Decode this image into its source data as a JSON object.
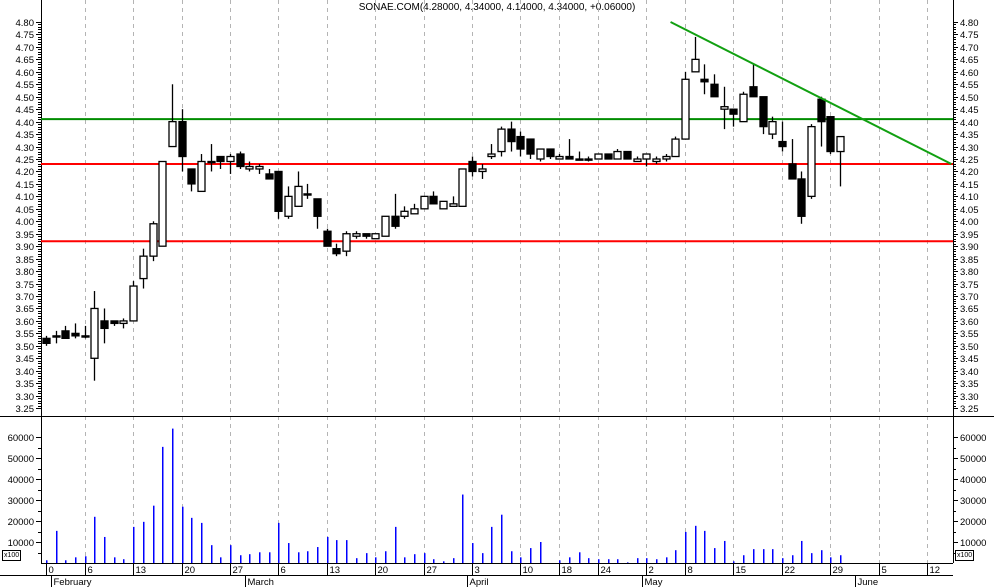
{
  "chart_data": {
    "type": "candlestick",
    "title": "SONAE.COM(4.28000, 4.34000, 4.14000, 4.34000, +0.06000)",
    "price_axis": {
      "min": 3.25,
      "max": 4.8,
      "step": 0.05,
      "sides": [
        "left",
        "right"
      ]
    },
    "volume_axis": {
      "ticks": [
        10000,
        20000,
        30000,
        40000,
        50000,
        60000
      ],
      "unit_label": "x100"
    },
    "grid": "vertical dashed",
    "colors": {
      "up_body": "#ffffff",
      "down_body": "#000000",
      "volume": "#0000ff",
      "resistance": "#008c00",
      "support": "#ff0000",
      "trendline": "#11a011",
      "grid": "#b4b4b4"
    },
    "ohlc": [
      [
        3.53,
        3.54,
        3.5,
        3.51
      ],
      [
        3.54,
        3.56,
        3.51,
        3.54
      ],
      [
        3.56,
        3.58,
        3.53,
        3.53
      ],
      [
        3.55,
        3.59,
        3.53,
        3.54
      ],
      [
        3.54,
        3.58,
        3.53,
        3.54
      ],
      [
        3.45,
        3.72,
        3.36,
        3.65
      ],
      [
        3.6,
        3.65,
        3.51,
        3.57
      ],
      [
        3.6,
        3.6,
        3.58,
        3.59
      ],
      [
        3.59,
        3.61,
        3.57,
        3.6
      ],
      [
        3.6,
        3.76,
        3.6,
        3.74
      ],
      [
        3.77,
        3.89,
        3.73,
        3.86
      ],
      [
        3.86,
        4.0,
        3.84,
        3.99
      ],
      [
        3.9,
        4.24,
        3.9,
        4.24
      ],
      [
        4.3,
        4.55,
        4.3,
        4.4
      ],
      [
        4.4,
        4.45,
        4.2,
        4.26
      ],
      [
        4.21,
        4.21,
        4.12,
        4.15
      ],
      [
        4.12,
        4.27,
        4.12,
        4.24
      ],
      [
        4.24,
        4.31,
        4.2,
        4.24
      ],
      [
        4.26,
        4.26,
        4.21,
        4.24
      ],
      [
        4.24,
        4.27,
        4.19,
        4.26
      ],
      [
        4.27,
        4.28,
        4.21,
        4.22
      ],
      [
        4.21,
        4.24,
        4.2,
        4.22
      ],
      [
        4.21,
        4.23,
        4.19,
        4.22
      ],
      [
        4.19,
        4.21,
        4.17,
        4.17
      ],
      [
        4.2,
        4.2,
        4.01,
        4.04
      ],
      [
        4.02,
        4.14,
        4.01,
        4.1
      ],
      [
        4.06,
        4.2,
        4.06,
        4.14
      ],
      [
        4.11,
        4.15,
        4.09,
        4.11
      ],
      [
        4.09,
        4.09,
        3.97,
        4.02
      ],
      [
        3.96,
        3.97,
        3.9,
        3.9
      ],
      [
        3.89,
        3.91,
        3.86,
        3.87
      ],
      [
        3.88,
        3.96,
        3.86,
        3.95
      ],
      [
        3.94,
        3.96,
        3.93,
        3.95
      ],
      [
        3.95,
        3.95,
        3.93,
        3.94
      ],
      [
        3.93,
        3.95,
        3.93,
        3.95
      ],
      [
        3.94,
        4.02,
        3.94,
        4.02
      ],
      [
        4.02,
        4.11,
        3.97,
        3.98
      ],
      [
        4.02,
        4.06,
        4.01,
        4.04
      ],
      [
        4.03,
        4.07,
        4.03,
        4.05
      ],
      [
        4.05,
        4.1,
        4.05,
        4.1
      ],
      [
        4.1,
        4.12,
        4.07,
        4.07
      ],
      [
        4.05,
        4.08,
        4.05,
        4.08
      ],
      [
        4.06,
        4.1,
        4.06,
        4.07
      ],
      [
        4.06,
        4.21,
        4.06,
        4.21
      ],
      [
        4.24,
        4.26,
        4.18,
        4.2
      ],
      [
        4.2,
        4.23,
        4.17,
        4.21
      ],
      [
        4.26,
        4.31,
        4.25,
        4.27
      ],
      [
        4.28,
        4.38,
        4.26,
        4.37
      ],
      [
        4.37,
        4.4,
        4.28,
        4.32
      ],
      [
        4.34,
        4.36,
        4.26,
        4.29
      ],
      [
        4.33,
        4.33,
        4.25,
        4.27
      ],
      [
        4.25,
        4.29,
        4.24,
        4.29
      ],
      [
        4.29,
        4.29,
        4.25,
        4.26
      ],
      [
        4.25,
        4.27,
        4.25,
        4.26
      ],
      [
        4.26,
        4.33,
        4.25,
        4.25
      ],
      [
        4.25,
        4.28,
        4.25,
        4.25
      ],
      [
        4.25,
        4.26,
        4.24,
        4.25
      ],
      [
        4.25,
        4.27,
        4.25,
        4.27
      ],
      [
        4.27,
        4.27,
        4.25,
        4.25
      ],
      [
        4.25,
        4.29,
        4.25,
        4.28
      ],
      [
        4.28,
        4.28,
        4.25,
        4.25
      ],
      [
        4.24,
        4.26,
        4.24,
        4.25
      ],
      [
        4.25,
        4.27,
        4.22,
        4.27
      ],
      [
        4.24,
        4.26,
        4.23,
        4.25
      ],
      [
        4.25,
        4.27,
        4.24,
        4.26
      ],
      [
        4.26,
        4.34,
        4.26,
        4.33
      ],
      [
        4.33,
        4.6,
        4.33,
        4.57
      ],
      [
        4.6,
        4.74,
        4.6,
        4.65
      ],
      [
        4.57,
        4.63,
        4.51,
        4.56
      ],
      [
        4.55,
        4.59,
        4.5,
        4.5
      ],
      [
        4.45,
        4.54,
        4.37,
        4.46
      ],
      [
        4.45,
        4.45,
        4.38,
        4.43
      ],
      [
        4.4,
        4.52,
        4.4,
        4.51
      ],
      [
        4.54,
        4.63,
        4.5,
        4.5
      ],
      [
        4.5,
        4.5,
        4.35,
        4.38
      ],
      [
        4.35,
        4.42,
        4.33,
        4.4
      ],
      [
        4.32,
        4.4,
        4.28,
        4.3
      ],
      [
        4.23,
        4.33,
        4.17,
        4.17
      ],
      [
        4.17,
        4.2,
        3.99,
        4.02
      ],
      [
        4.1,
        4.39,
        4.09,
        4.38
      ],
      [
        4.49,
        4.5,
        4.3,
        4.4
      ],
      [
        4.42,
        4.42,
        4.27,
        4.28
      ],
      [
        4.28,
        4.34,
        4.14,
        4.34
      ]
    ],
    "volume": [
      1300,
      15300,
      1300,
      2700,
      3200,
      22000,
      12400,
      2700,
      1800,
      17200,
      19600,
      27300,
      55300,
      64000,
      26800,
      21500,
      19100,
      8500,
      2700,
      8500,
      3700,
      4200,
      5100,
      5100,
      19100,
      9500,
      5100,
      5600,
      7600,
      12400,
      10900,
      10900,
      2300,
      4700,
      2700,
      5600,
      17200,
      2700,
      4200,
      4700,
      1800,
      800,
      2300,
      32600,
      9500,
      4700,
      17200,
      23000,
      5600,
      2700,
      7100,
      10000,
      0,
      1300,
      2700,
      5100,
      2300,
      1800,
      1800,
      1800,
      300,
      2300,
      2300,
      1800,
      2700,
      6100,
      14800,
      17700,
      15300,
      7100,
      10500,
      800,
      3700,
      6600,
      6600,
      6600,
      2300,
      3700,
      10500,
      4700,
      6100,
      2700,
      3700
    ],
    "x_ticks": [
      {
        "label": "0",
        "index": 0
      },
      {
        "label": "6",
        "index": 4
      },
      {
        "label": "13",
        "index": 9
      },
      {
        "label": "20",
        "index": 14
      },
      {
        "label": "27",
        "index": 19
      },
      {
        "label": "6",
        "index": 24
      },
      {
        "label": "13",
        "index": 29
      },
      {
        "label": "20",
        "index": 34
      },
      {
        "label": "27",
        "index": 39
      },
      {
        "label": "3",
        "index": 44
      },
      {
        "label": "10",
        "index": 49
      },
      {
        "label": "18",
        "index": 53
      },
      {
        "label": "24",
        "index": 57
      },
      {
        "label": "2",
        "index": 62
      },
      {
        "label": "8",
        "index": 66
      },
      {
        "label": "15",
        "index": 71
      },
      {
        "label": "22",
        "index": 76
      },
      {
        "label": "29",
        "index": 81
      },
      {
        "label": "5",
        "index": 86
      },
      {
        "label": "12",
        "index": 91
      }
    ],
    "months": [
      {
        "label": "February",
        "index": 1
      },
      {
        "label": "March",
        "index": 21
      },
      {
        "label": "April",
        "index": 44
      },
      {
        "label": "May",
        "index": 62
      },
      {
        "label": "June",
        "index": 84
      }
    ],
    "horizontal_lines": [
      {
        "price": 4.41,
        "color": "#008c00"
      },
      {
        "price": 4.23,
        "color": "#ff0000"
      },
      {
        "price": 3.92,
        "color": "#ff0000"
      }
    ],
    "trendline": {
      "from": {
        "index": 64.5,
        "price": 4.8
      },
      "to": {
        "index": 93.5,
        "price": 4.23
      },
      "color": "#11a011"
    }
  }
}
